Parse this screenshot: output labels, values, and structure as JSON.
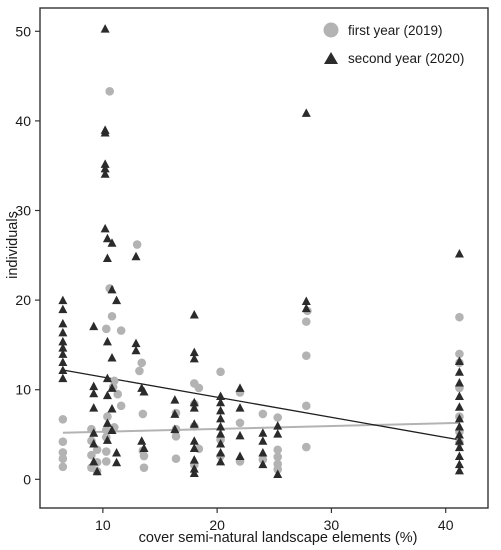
{
  "chart_data": {
    "type": "scatter",
    "xlabel": "cover semi-natural landscape elements (%)",
    "ylabel": "individuals",
    "xlim": [
      4.5,
      43.7
    ],
    "ylim": [
      -3.2,
      52.6
    ],
    "xticks": [
      10,
      20,
      30,
      40
    ],
    "yticks": [
      0,
      10,
      20,
      30,
      40,
      50
    ],
    "legend": "top-right",
    "series": [
      {
        "name": "first year (2019)",
        "marker": "circle",
        "color": "#b3b3b3",
        "points": [
          [
            6.5,
            1.4
          ],
          [
            6.5,
            2.3
          ],
          [
            6.5,
            3.0
          ],
          [
            6.5,
            4.2
          ],
          [
            6.5,
            6.7
          ],
          [
            9.0,
            1.3
          ],
          [
            9.0,
            2.7
          ],
          [
            9.0,
            4.3
          ],
          [
            9.0,
            5.6
          ],
          [
            9.5,
            0.9
          ],
          [
            9.5,
            1.9
          ],
          [
            9.5,
            3.3
          ],
          [
            10.3,
            2.0
          ],
          [
            10.3,
            3.1
          ],
          [
            10.3,
            4.7
          ],
          [
            10.3,
            5.5
          ],
          [
            10.3,
            16.8
          ],
          [
            10.4,
            7.0
          ],
          [
            10.6,
            43.3
          ],
          [
            10.6,
            21.3
          ],
          [
            10.8,
            18.2
          ],
          [
            10.9,
            10.3
          ],
          [
            11.0,
            5.8
          ],
          [
            11.0,
            11.0
          ],
          [
            11.3,
            9.5
          ],
          [
            11.6,
            8.2
          ],
          [
            11.6,
            16.6
          ],
          [
            13.0,
            26.2
          ],
          [
            13.2,
            12.1
          ],
          [
            13.4,
            13.0
          ],
          [
            13.5,
            7.3
          ],
          [
            13.5,
            3.2
          ],
          [
            13.6,
            1.3
          ],
          [
            13.6,
            2.6
          ],
          [
            16.4,
            2.3
          ],
          [
            16.4,
            4.8
          ],
          [
            16.4,
            5.6
          ],
          [
            16.4,
            7.4
          ],
          [
            18.0,
            1.6
          ],
          [
            18.0,
            5.9
          ],
          [
            18.0,
            8.4
          ],
          [
            18.0,
            10.7
          ],
          [
            18.4,
            3.4
          ],
          [
            18.4,
            10.2
          ],
          [
            20.3,
            12.0
          ],
          [
            20.3,
            2.6
          ],
          [
            20.3,
            4.4
          ],
          [
            22.0,
            2.0
          ],
          [
            22.0,
            6.3
          ],
          [
            22.0,
            9.7
          ],
          [
            24.0,
            7.3
          ],
          [
            24.0,
            2.2
          ],
          [
            25.3,
            1.1
          ],
          [
            25.3,
            1.7
          ],
          [
            25.3,
            2.5
          ],
          [
            25.3,
            3.3
          ],
          [
            25.3,
            6.9
          ],
          [
            27.8,
            3.6
          ],
          [
            27.8,
            8.2
          ],
          [
            27.8,
            13.8
          ],
          [
            27.8,
            17.6
          ],
          [
            27.9,
            18.8
          ],
          [
            41.2,
            18.1
          ],
          [
            41.2,
            14.0
          ],
          [
            41.2,
            13.0
          ],
          [
            41.2,
            10.2
          ],
          [
            41.2,
            7.0
          ],
          [
            41.2,
            5.3
          ],
          [
            41.2,
            4.1
          ]
        ]
      },
      {
        "name": "second year (2020)",
        "marker": "triangle",
        "color": "#2b2b2b",
        "points": [
          [
            6.5,
            20.0
          ],
          [
            6.5,
            19.0
          ],
          [
            6.5,
            17.4
          ],
          [
            6.5,
            16.4
          ],
          [
            6.5,
            15.4
          ],
          [
            6.5,
            14.7
          ],
          [
            6.5,
            14.0
          ],
          [
            6.5,
            13.1
          ],
          [
            6.5,
            12.2
          ],
          [
            6.5,
            11.3
          ],
          [
            9.2,
            17.1
          ],
          [
            9.2,
            10.4
          ],
          [
            9.2,
            9.6
          ],
          [
            9.2,
            8.0
          ],
          [
            9.2,
            5.2
          ],
          [
            9.2,
            4.0
          ],
          [
            9.2,
            2.0
          ],
          [
            9.5,
            0.9
          ],
          [
            10.2,
            50.3
          ],
          [
            10.2,
            39.0
          ],
          [
            10.2,
            38.7
          ],
          [
            10.2,
            35.2
          ],
          [
            10.2,
            34.7
          ],
          [
            10.2,
            34.1
          ],
          [
            10.2,
            28.0
          ],
          [
            10.4,
            26.9
          ],
          [
            10.8,
            26.4
          ],
          [
            10.4,
            24.7
          ],
          [
            10.8,
            21.2
          ],
          [
            11.2,
            20.0
          ],
          [
            10.4,
            15.4
          ],
          [
            10.8,
            13.6
          ],
          [
            10.4,
            11.3
          ],
          [
            10.8,
            10.2
          ],
          [
            10.4,
            9.4
          ],
          [
            10.8,
            7.9
          ],
          [
            10.4,
            6.3
          ],
          [
            10.8,
            5.5
          ],
          [
            10.4,
            4.4
          ],
          [
            11.2,
            3.0
          ],
          [
            11.2,
            1.9
          ],
          [
            12.9,
            24.9
          ],
          [
            12.9,
            15.2
          ],
          [
            12.9,
            14.4
          ],
          [
            13.4,
            10.2
          ],
          [
            13.6,
            9.8
          ],
          [
            13.4,
            4.3
          ],
          [
            13.6,
            3.5
          ],
          [
            16.3,
            8.9
          ],
          [
            16.3,
            7.3
          ],
          [
            16.3,
            5.6
          ],
          [
            18.0,
            18.4
          ],
          [
            18.0,
            14.2
          ],
          [
            18.0,
            13.5
          ],
          [
            18.0,
            8.6
          ],
          [
            18.0,
            8.0
          ],
          [
            18.0,
            6.2
          ],
          [
            18.0,
            4.3
          ],
          [
            18.0,
            3.5
          ],
          [
            18.0,
            2.2
          ],
          [
            18.0,
            1.2
          ],
          [
            18.0,
            0.7
          ],
          [
            20.3,
            9.3
          ],
          [
            20.3,
            8.6
          ],
          [
            20.3,
            7.7
          ],
          [
            20.3,
            6.8
          ],
          [
            20.3,
            5.9
          ],
          [
            20.3,
            5.1
          ],
          [
            20.3,
            4.0
          ],
          [
            20.3,
            3.0
          ],
          [
            20.3,
            2.0
          ],
          [
            22.0,
            10.2
          ],
          [
            22.0,
            8.0
          ],
          [
            22.0,
            4.9
          ],
          [
            22.0,
            2.6
          ],
          [
            24.0,
            5.2
          ],
          [
            24.0,
            4.3
          ],
          [
            24.0,
            3.0
          ],
          [
            24.0,
            1.7
          ],
          [
            25.3,
            6.0
          ],
          [
            25.3,
            5.1
          ],
          [
            25.3,
            0.6
          ],
          [
            27.8,
            40.9
          ],
          [
            27.8,
            19.9
          ],
          [
            27.8,
            19.1
          ],
          [
            41.2,
            25.2
          ],
          [
            41.2,
            13.2
          ],
          [
            41.2,
            12.0
          ],
          [
            41.2,
            10.8
          ],
          [
            41.2,
            9.3
          ],
          [
            41.2,
            8.1
          ],
          [
            41.2,
            6.8
          ],
          [
            41.2,
            5.9
          ],
          [
            41.2,
            5.0
          ],
          [
            41.2,
            4.3
          ],
          [
            41.2,
            3.6
          ],
          [
            41.2,
            2.6
          ],
          [
            41.2,
            1.7
          ],
          [
            41.2,
            1.0
          ]
        ]
      }
    ],
    "trendlines": [
      {
        "series": "first year (2019)",
        "x": [
          6.5,
          41.2
        ],
        "y": [
          5.2,
          6.3
        ],
        "color": "#b3b3b3"
      },
      {
        "series": "second year (2020)",
        "x": [
          6.5,
          41.2
        ],
        "y": [
          12.2,
          4.4
        ],
        "color": "#1f1f1f"
      }
    ]
  }
}
